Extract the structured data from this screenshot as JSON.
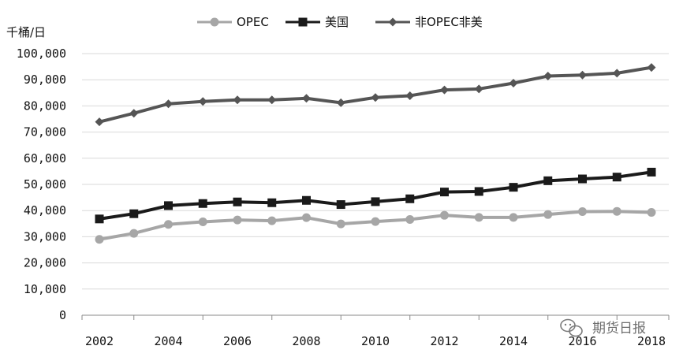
{
  "chart_data": {
    "type": "line",
    "title": "",
    "ylabel": "千桶/日",
    "xlabel": "",
    "ylim": [
      0,
      100000
    ],
    "y_ticks": [
      "0",
      "10,000",
      "20,000",
      "30,000",
      "40,000",
      "50,000",
      "60,000",
      "70,000",
      "80,000",
      "90,000",
      "100,000"
    ],
    "x_tick_labels": [
      "2002",
      "2004",
      "2006",
      "2008",
      "2010",
      "2012",
      "2014",
      "2016",
      "2018"
    ],
    "x": [
      2002,
      2003,
      2004,
      2005,
      2006,
      2007,
      2008,
      2009,
      2010,
      2011,
      2012,
      2013,
      2014,
      2015,
      2016,
      2017,
      2018
    ],
    "grid": "horizontal",
    "legend_position": "top",
    "series": [
      {
        "name": "OPEC",
        "color": "#a6a6a6",
        "marker": "circle",
        "values": [
          29000,
          31300,
          34700,
          35700,
          36400,
          36100,
          37300,
          34900,
          35800,
          36600,
          38200,
          37400,
          37400,
          38500,
          39600,
          39700,
          39300
        ]
      },
      {
        "name": "美国",
        "color": "#1a1a1a",
        "marker": "square",
        "values": [
          36800,
          38800,
          41900,
          42700,
          43300,
          43000,
          43900,
          42300,
          43400,
          44500,
          47100,
          47300,
          48900,
          51400,
          52100,
          52800,
          54700
        ]
      },
      {
        "name": "非OPEC非美",
        "color": "#555555",
        "marker": "diamond",
        "values": [
          73900,
          77200,
          80800,
          81700,
          82300,
          82300,
          82900,
          81200,
          83200,
          83900,
          86100,
          86500,
          88700,
          91400,
          91800,
          92500,
          94700
        ]
      }
    ]
  },
  "watermark": {
    "text": "期货日报",
    "icon": "wechat-icon"
  }
}
